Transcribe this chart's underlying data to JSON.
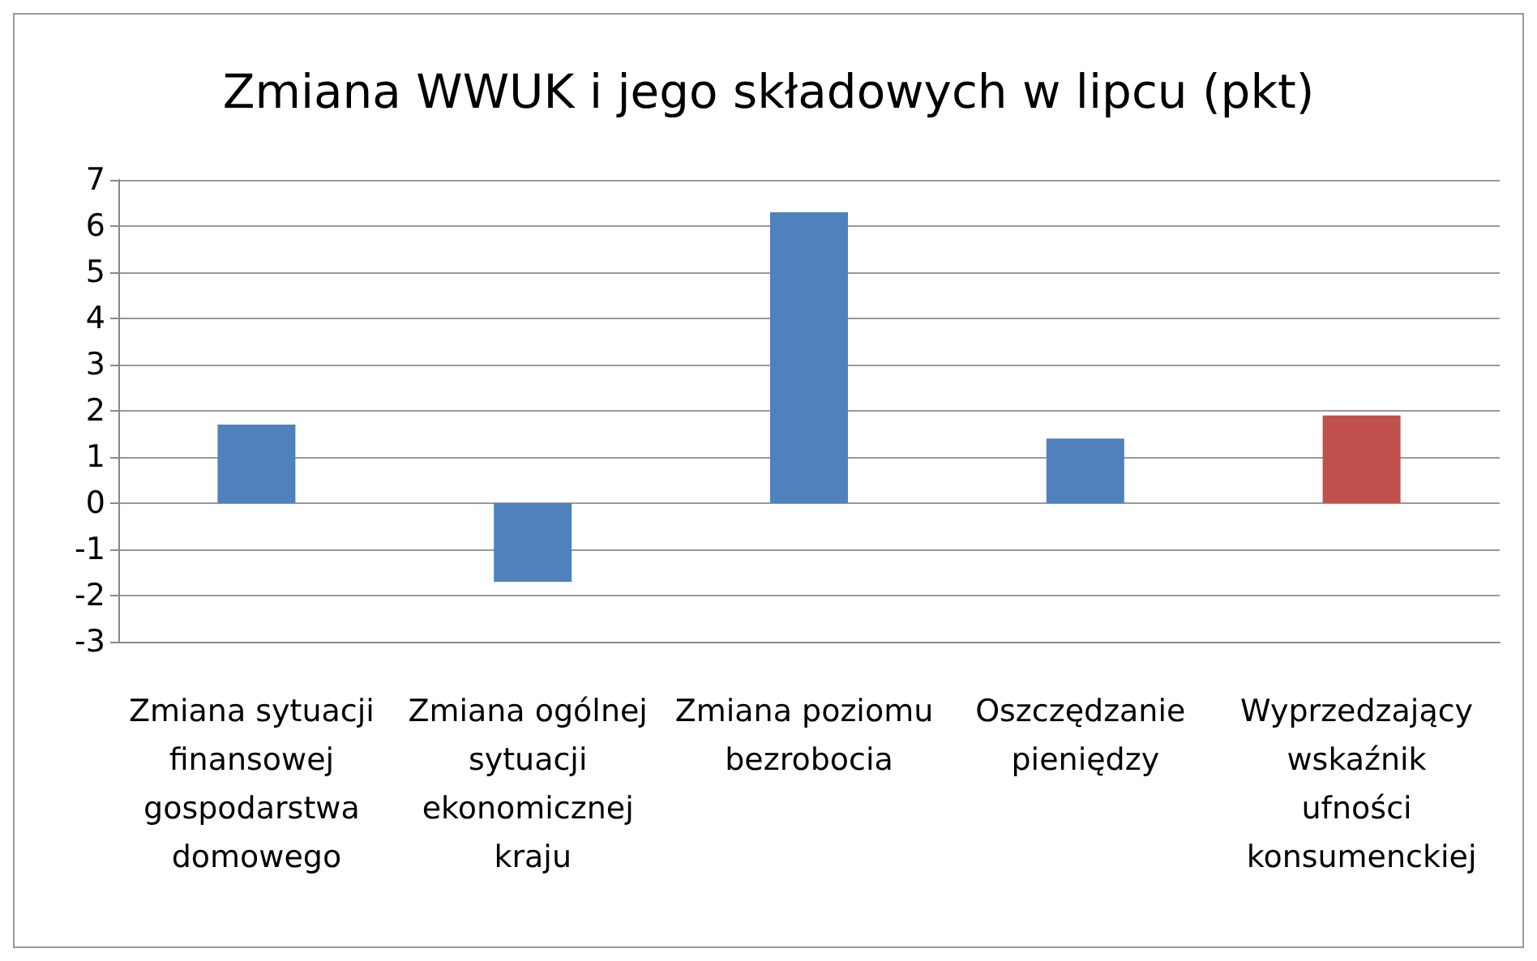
{
  "chart_data": {
    "type": "bar",
    "title": "Zmiana WWUK i jego składowych w lipcu (pkt)",
    "categories": [
      "Zmiana sytuacji finansowej gospodarstwa domowego",
      "Zmiana ogólnej sytuacji ekonomicznej kraju",
      "Zmiana poziomu bezrobocia",
      "Oszczędzanie pieniędzy",
      "Wyprzedzający wskaźnik ufności konsumenckiej"
    ],
    "values": [
      1.7,
      -1.7,
      6.3,
      1.4,
      1.9
    ],
    "colors": [
      "#4f81bd",
      "#4f81bd",
      "#4f81bd",
      "#4f81bd",
      "#c0504d"
    ],
    "ylim": [
      -3,
      7
    ],
    "yticks": [
      -3,
      -2,
      -1,
      0,
      1,
      2,
      3,
      4,
      5,
      6,
      7
    ],
    "grid": "y"
  }
}
